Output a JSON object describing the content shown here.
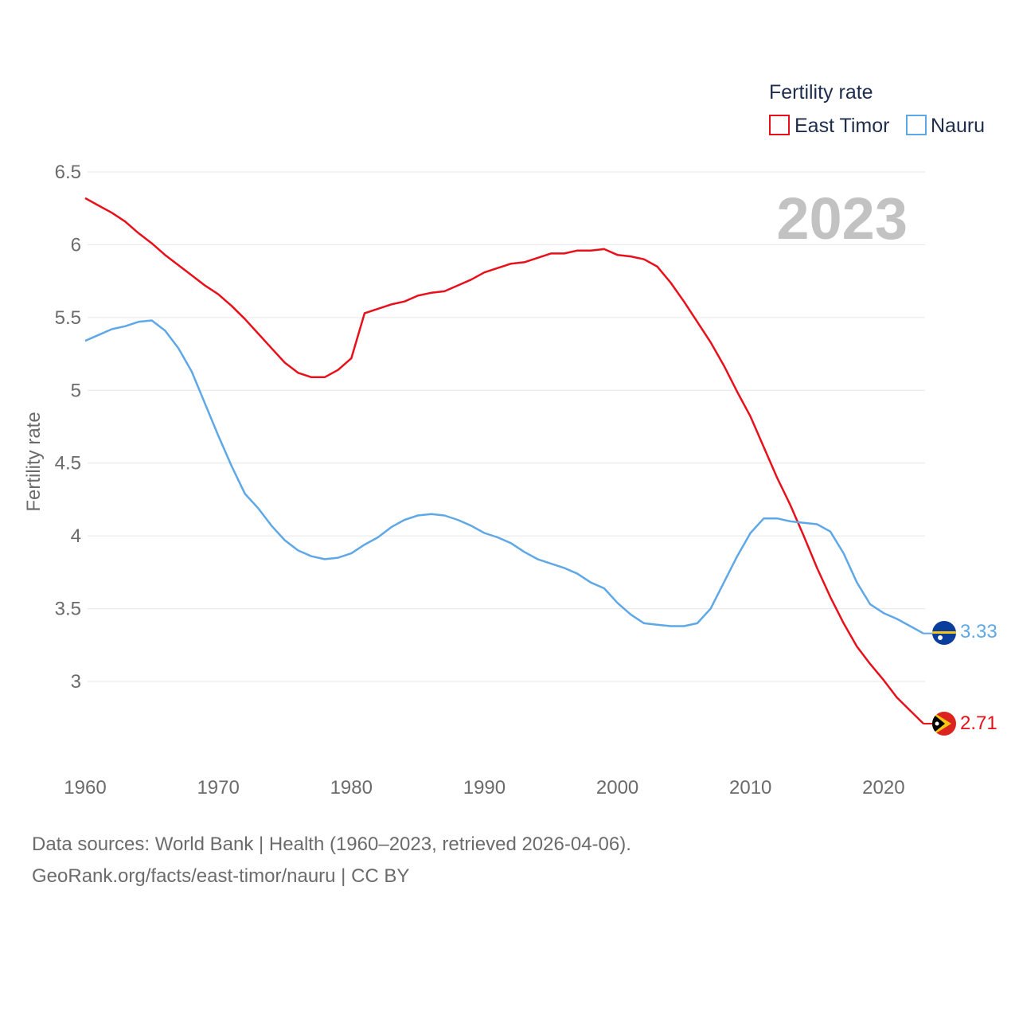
{
  "chart_data": {
    "type": "line",
    "ylabel": "Fertility rate",
    "legend_title": "Fertility rate",
    "legend_position": "top-right",
    "year_label": "2023",
    "xlim": [
      1960,
      2024
    ],
    "ylim": [
      2.45,
      6.55
    ],
    "x_ticks": [
      1960,
      1970,
      1980,
      1990,
      2000,
      2010,
      2020
    ],
    "y_ticks": [
      3,
      3.5,
      4,
      4.5,
      5,
      5.5,
      6,
      6.5
    ],
    "y_tick_labels": [
      "3",
      "3.5",
      "4",
      "4.5",
      "5",
      "5.5",
      "6",
      "6.5"
    ],
    "x_tick_labels": [
      "1960",
      "1970",
      "1980",
      "1990",
      "2000",
      "2010",
      "2020"
    ],
    "x": [
      1960,
      1961,
      1962,
      1963,
      1964,
      1965,
      1966,
      1967,
      1968,
      1969,
      1970,
      1971,
      1972,
      1973,
      1974,
      1975,
      1976,
      1977,
      1978,
      1979,
      1980,
      1981,
      1982,
      1983,
      1984,
      1985,
      1986,
      1987,
      1988,
      1989,
      1990,
      1991,
      1992,
      1993,
      1994,
      1995,
      1996,
      1997,
      1998,
      1999,
      2000,
      2001,
      2002,
      2003,
      2004,
      2005,
      2006,
      2007,
      2008,
      2009,
      2010,
      2011,
      2012,
      2013,
      2014,
      2015,
      2016,
      2017,
      2018,
      2019,
      2020,
      2021,
      2022,
      2023
    ],
    "series": [
      {
        "name": "East Timor",
        "color": "#e8101a",
        "end_value_label": "2.71",
        "values": [
          6.32,
          6.27,
          6.22,
          6.16,
          6.08,
          6.01,
          5.93,
          5.86,
          5.79,
          5.72,
          5.66,
          5.58,
          5.49,
          5.39,
          5.29,
          5.19,
          5.12,
          5.09,
          5.09,
          5.14,
          5.22,
          5.53,
          5.56,
          5.59,
          5.61,
          5.65,
          5.67,
          5.68,
          5.72,
          5.76,
          5.81,
          5.84,
          5.87,
          5.88,
          5.91,
          5.94,
          5.94,
          5.96,
          5.96,
          5.97,
          5.93,
          5.92,
          5.9,
          5.85,
          5.74,
          5.61,
          5.47,
          5.33,
          5.17,
          4.99,
          4.82,
          4.61,
          4.4,
          4.21,
          4.0,
          3.78,
          3.58,
          3.4,
          3.24,
          3.12,
          3.01,
          2.89,
          2.8,
          2.71
        ]
      },
      {
        "name": "Nauru",
        "color": "#5fa8e8",
        "end_value_label": "3.33",
        "values": [
          5.34,
          5.38,
          5.42,
          5.44,
          5.47,
          5.48,
          5.41,
          5.29,
          5.13,
          4.91,
          4.69,
          4.48,
          4.29,
          4.19,
          4.07,
          3.97,
          3.9,
          3.86,
          3.84,
          3.85,
          3.88,
          3.94,
          3.99,
          4.06,
          4.11,
          4.14,
          4.15,
          4.14,
          4.11,
          4.07,
          4.02,
          3.99,
          3.95,
          3.89,
          3.84,
          3.81,
          3.78,
          3.74,
          3.68,
          3.64,
          3.54,
          3.46,
          3.4,
          3.39,
          3.38,
          3.38,
          3.4,
          3.5,
          3.68,
          3.86,
          4.02,
          4.12,
          4.12,
          4.1,
          4.09,
          4.08,
          4.03,
          3.88,
          3.68,
          3.53,
          3.47,
          3.43,
          3.38,
          3.33
        ]
      }
    ]
  },
  "footer": {
    "line1": "Data sources: World Bank | Health (1960–2023, retrieved 2026-04-06).",
    "line2": "GeoRank.org/facts/east-timor/nauru | CC BY"
  }
}
